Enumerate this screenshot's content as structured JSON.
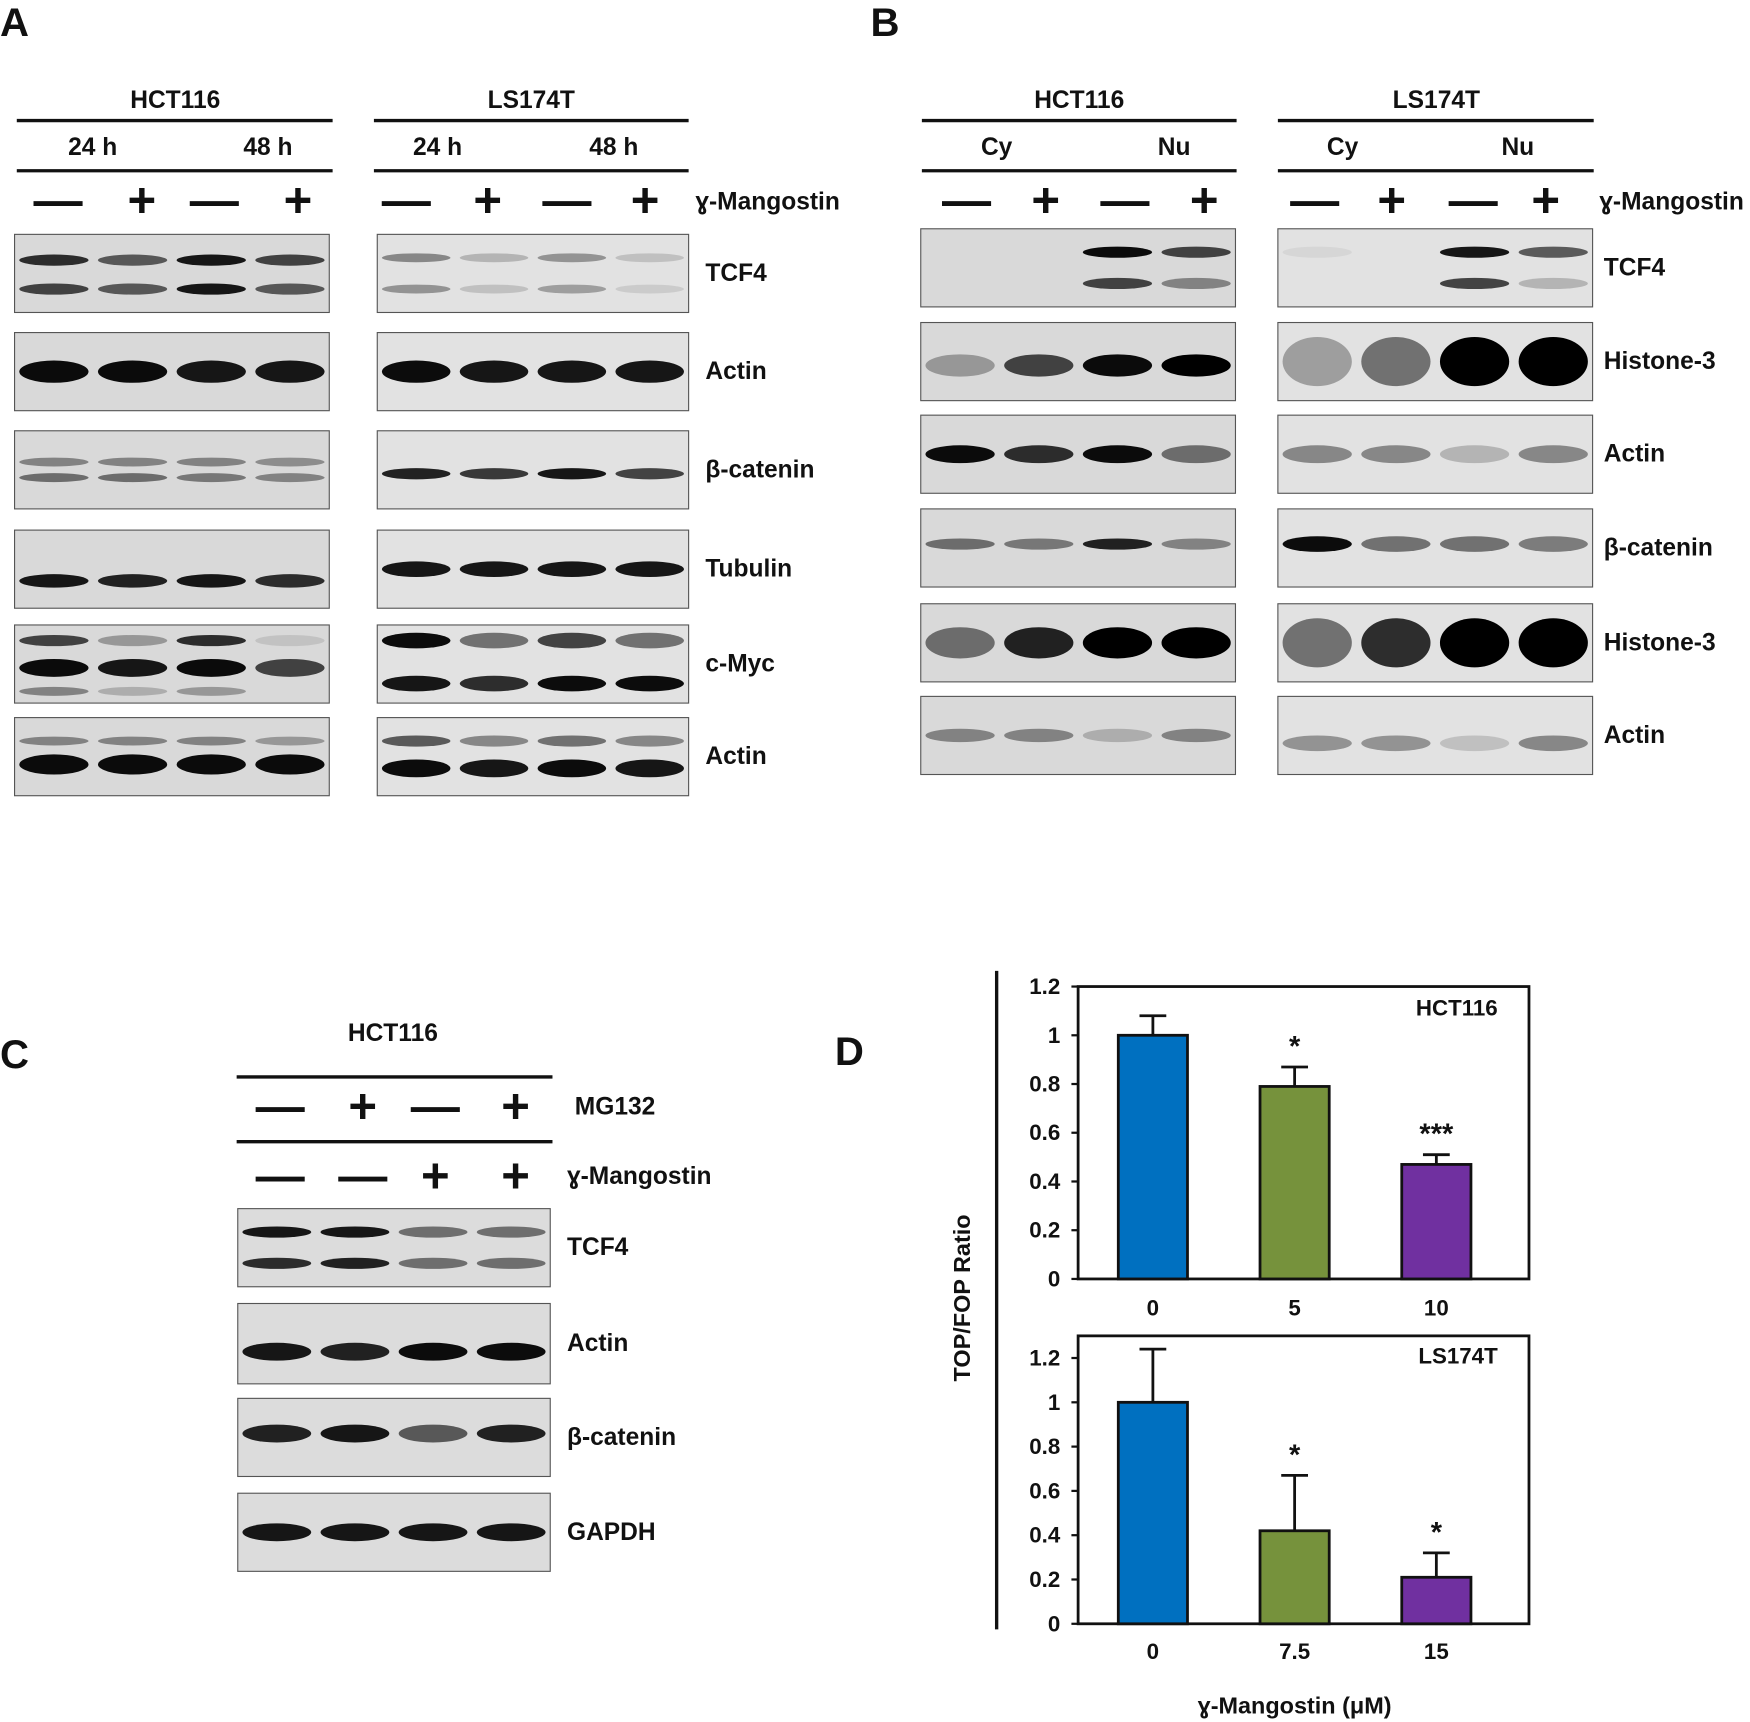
{
  "panels": {
    "A": {
      "label": "A",
      "treatment": "ɣ-Mangostin",
      "groups": [
        {
          "cell": "HCT116",
          "conditions": [
            "24 h",
            "48 h"
          ],
          "signs": [
            "—",
            "+",
            "—",
            "+"
          ]
        },
        {
          "cell": "LS174T",
          "conditions": [
            "24 h",
            "48 h"
          ],
          "signs": [
            "—",
            "+",
            "—",
            "+"
          ]
        }
      ],
      "bands": [
        "TCF4",
        "Actin",
        "β-catenin",
        "Tubulin",
        "c-Myc",
        "Actin"
      ]
    },
    "B": {
      "label": "B",
      "treatment": "ɣ-Mangostin",
      "groups": [
        {
          "cell": "HCT116",
          "conditions": [
            "Cy",
            "Nu"
          ],
          "signs": [
            "—",
            "+",
            "—",
            "+"
          ]
        },
        {
          "cell": "LS174T",
          "conditions": [
            "Cy",
            "Nu"
          ],
          "signs": [
            "—",
            "+",
            "—",
            "+"
          ]
        }
      ],
      "bands": [
        "TCF4",
        "Histone-3",
        "Actin",
        "β-catenin",
        "Histone-3",
        "Actin"
      ]
    },
    "C": {
      "label": "C",
      "cell": "HCT116",
      "rows": [
        {
          "signs": [
            "—",
            "+",
            "—",
            "+"
          ],
          "label": "MG132"
        },
        {
          "signs": [
            "—",
            "—",
            "+",
            "+"
          ],
          "label": "ɣ-Mangostin"
        }
      ],
      "bands": [
        "TCF4",
        "Actin",
        "β-catenin",
        "GAPDH"
      ]
    }
  },
  "panel_d": {
    "label": "D",
    "ylabel": "TOP/FOP Ratio",
    "xlabel": "ɣ-Mangostin (μM)"
  },
  "chart_data": [
    {
      "type": "bar",
      "title": "HCT116",
      "categories": [
        "0",
        "5",
        "10"
      ],
      "values": [
        1,
        0.79,
        0.47
      ],
      "errors": [
        0.08,
        0.08,
        0.04
      ],
      "annotations": [
        null,
        "*",
        "***"
      ],
      "colors": [
        "#0070c0",
        "#76923c",
        "#7030a0"
      ],
      "ylim": [
        0,
        1.2
      ],
      "yticks": [
        0,
        0.2,
        0.4,
        0.6,
        0.8,
        1,
        1.2
      ]
    },
    {
      "type": "bar",
      "title": "LS174T",
      "categories": [
        "0",
        "7.5",
        "15"
      ],
      "values": [
        1,
        0.42,
        0.21
      ],
      "errors": [
        0.24,
        0.25,
        0.11
      ],
      "annotations": [
        null,
        "*",
        "*"
      ],
      "colors": [
        "#0070c0",
        "#76923c",
        "#7030a0"
      ],
      "ylim": [
        0,
        1.3
      ],
      "yticks": [
        0,
        0.2,
        0.4,
        0.6,
        0.8,
        1,
        1.2
      ]
    }
  ]
}
